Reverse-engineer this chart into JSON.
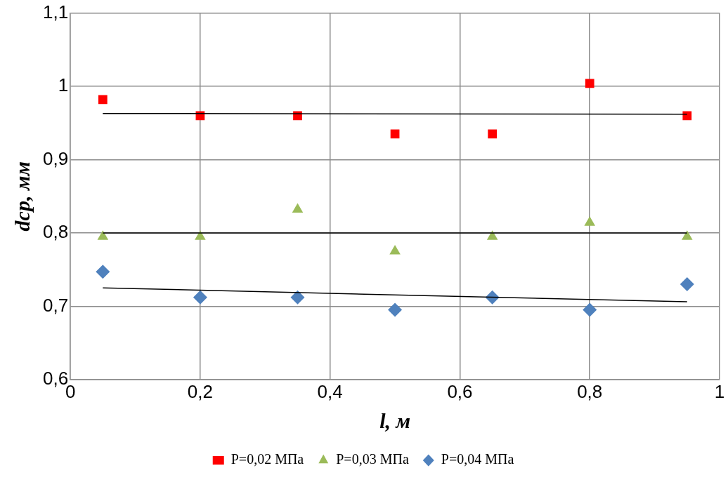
{
  "chart_data": {
    "type": "scatter",
    "xlabel": "l, м",
    "ylabel": "dср, мм",
    "xlim": [
      0,
      1
    ],
    "ylim": [
      0.6,
      1.1
    ],
    "xticks": [
      0,
      {
        "value": 0.2,
        "label": "0,2"
      },
      {
        "value": 0.4,
        "label": "0,4"
      },
      {
        "value": 0.6,
        "label": "0,6"
      },
      {
        "value": 0.8,
        "label": "0,8"
      },
      1
    ],
    "yticks": [
      {
        "value": 0.6,
        "label": "0,6"
      },
      {
        "value": 0.7,
        "label": "0,7"
      },
      {
        "value": 0.8,
        "label": "0,8"
      },
      {
        "value": 0.9,
        "label": "0,9"
      },
      1,
      {
        "value": 1.1,
        "label": "1,1"
      }
    ],
    "grid": true,
    "legend": "bottom",
    "series": [
      {
        "name": "P=0,02 МПа",
        "color": "#ff0000",
        "marker": "square",
        "x": [
          0.05,
          0.2,
          0.35,
          0.5,
          0.65,
          0.8,
          0.95
        ],
        "values": [
          0.982,
          0.96,
          0.96,
          0.935,
          0.935,
          1.004,
          0.96
        ]
      },
      {
        "name": "P=0,03 МПа",
        "color": "#9bbb59",
        "marker": "triangle",
        "x": [
          0.05,
          0.2,
          0.35,
          0.5,
          0.65,
          0.8,
          0.95
        ],
        "values": [
          0.795,
          0.795,
          0.832,
          0.775,
          0.795,
          0.814,
          0.795
        ]
      },
      {
        "name": "P=0,04 МПа",
        "color": "#4f81bd",
        "marker": "diamond",
        "x": [
          0.05,
          0.2,
          0.35,
          0.5,
          0.65,
          0.8,
          0.95
        ],
        "values": [
          0.747,
          0.712,
          0.712,
          0.695,
          0.712,
          0.695,
          0.73
        ]
      },
      {
        "type": "line",
        "color": "#000000",
        "marker": "none",
        "x": [
          0.05,
          0.95
        ],
        "values": [
          0.963,
          0.962
        ]
      },
      {
        "type": "line",
        "color": "#000000",
        "marker": "none",
        "x": [
          0.05,
          0.95
        ],
        "values": [
          0.8,
          0.8
        ]
      },
      {
        "type": "line",
        "color": "#000000",
        "marker": "none",
        "x": [
          0.05,
          0.95
        ],
        "values": [
          0.725,
          0.706
        ]
      }
    ]
  }
}
